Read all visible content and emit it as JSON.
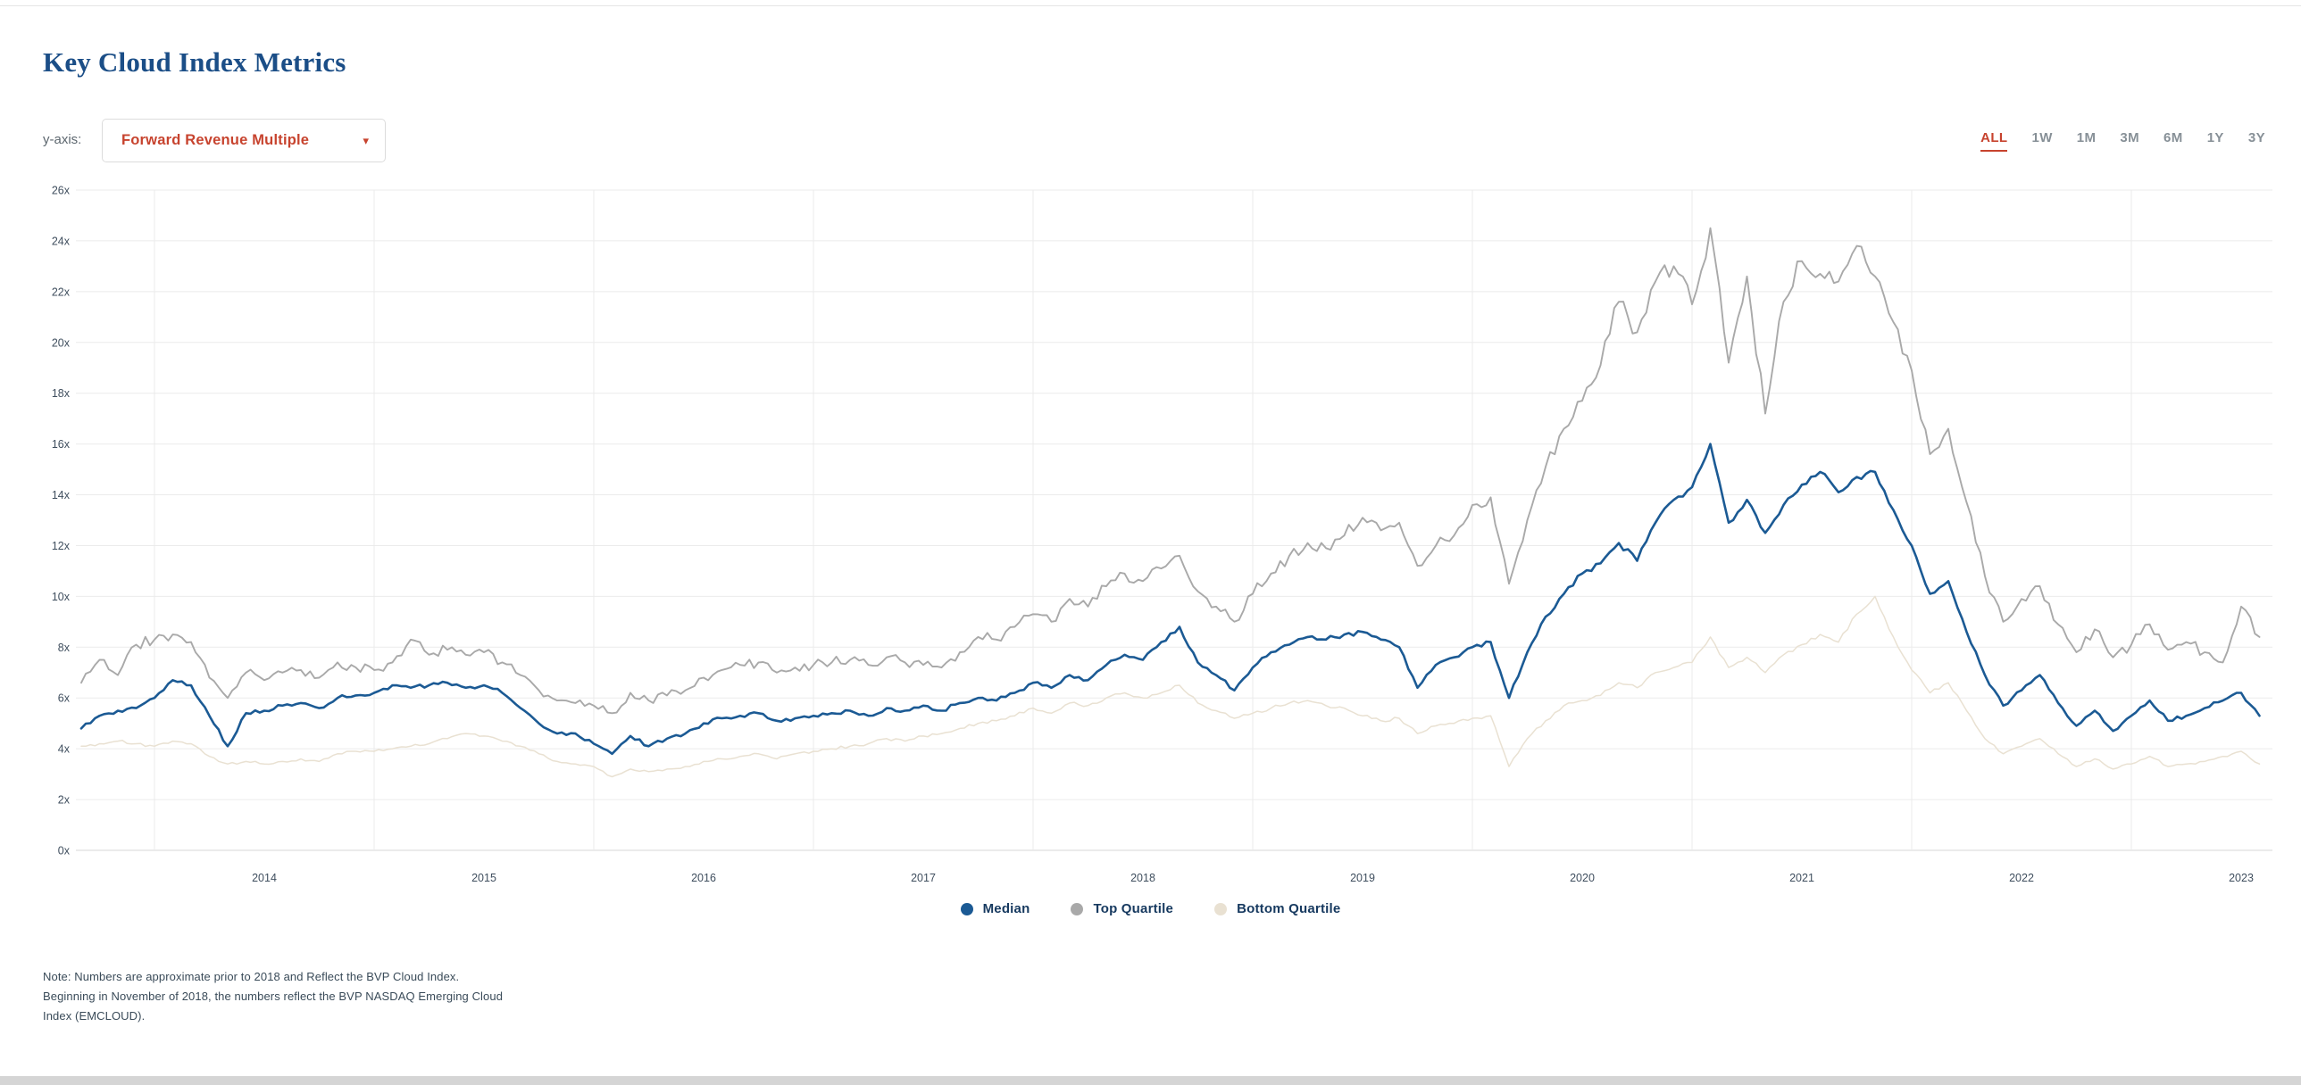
{
  "header": {
    "title": "Key Cloud Index Metrics"
  },
  "controls": {
    "y_axis_label": "y-axis:",
    "metric_dropdown": {
      "value": "Forward Revenue Multiple",
      "caret_glyph": "▾",
      "icon": "chevron-down-icon"
    },
    "time_ranges": [
      "ALL",
      "1W",
      "1M",
      "3M",
      "6M",
      "1Y",
      "3Y"
    ],
    "active_time_range": "ALL"
  },
  "chart_data": {
    "type": "line",
    "title": "Key Cloud Index Metrics",
    "xlabel": "",
    "ylabel": "Forward Revenue Multiple",
    "x_start": "2013-09",
    "x_end": "2023-08",
    "frequency": "monthly",
    "x_tick_labels": [
      "2014",
      "2015",
      "2016",
      "2017",
      "2018",
      "2019",
      "2020",
      "2021",
      "2022",
      "2023"
    ],
    "y_ticks": [
      "0x",
      "2x",
      "4x",
      "6x",
      "8x",
      "10x",
      "12x",
      "14x",
      "16x",
      "18x",
      "20x",
      "22x",
      "24x",
      "26x"
    ],
    "ylim": [
      0,
      26
    ],
    "y_unit_suffix": "x",
    "grid": true,
    "legend_position": "bottom",
    "series": [
      {
        "name": "Median",
        "color": "#1b5a94",
        "values": [
          4.8,
          5.3,
          5.5,
          5.6,
          6.0,
          6.7,
          6.5,
          5.3,
          4.1,
          5.4,
          5.5,
          5.7,
          5.8,
          5.6,
          6.0,
          6.1,
          6.2,
          6.5,
          6.4,
          6.5,
          6.6,
          6.4,
          6.5,
          6.2,
          5.6,
          5.0,
          4.6,
          4.6,
          4.2,
          3.8,
          4.5,
          4.1,
          4.4,
          4.6,
          5.0,
          5.2,
          5.3,
          5.4,
          5.1,
          5.2,
          5.3,
          5.4,
          5.5,
          5.3,
          5.6,
          5.5,
          5.7,
          5.5,
          5.8,
          6.0,
          5.9,
          6.2,
          6.6,
          6.4,
          6.9,
          6.7,
          7.3,
          7.7,
          7.5,
          8.2,
          8.8,
          7.4,
          6.9,
          6.3,
          7.2,
          7.8,
          8.1,
          8.4,
          8.3,
          8.5,
          8.6,
          8.3,
          8.0,
          6.4,
          7.3,
          7.6,
          8.0,
          8.2,
          6.0,
          7.8,
          9.2,
          10.1,
          10.9,
          11.3,
          12.1,
          11.4,
          12.9,
          13.8,
          14.3,
          16.0,
          12.9,
          13.8,
          12.5,
          13.6,
          14.4,
          14.9,
          14.1,
          14.7,
          14.9,
          13.4,
          12.0,
          10.1,
          10.6,
          8.6,
          6.9,
          5.7,
          6.3,
          6.9,
          5.8,
          4.9,
          5.5,
          4.7,
          5.3,
          5.9,
          5.1,
          5.3,
          5.6,
          5.9,
          6.2,
          5.3
        ]
      },
      {
        "name": "Top Quartile",
        "color": "#a9a9a9",
        "values": [
          6.6,
          7.5,
          6.9,
          8.1,
          8.3,
          8.5,
          8.2,
          6.8,
          6.0,
          7.0,
          6.7,
          7.0,
          7.1,
          6.8,
          7.4,
          7.2,
          7.1,
          7.4,
          8.3,
          7.7,
          7.9,
          7.7,
          7.8,
          7.4,
          6.9,
          6.3,
          5.9,
          5.8,
          5.7,
          5.4,
          6.2,
          5.9,
          6.1,
          6.3,
          6.8,
          7.1,
          7.3,
          7.4,
          7.0,
          7.2,
          7.3,
          7.4,
          7.5,
          7.3,
          7.6,
          7.4,
          7.3,
          7.2,
          7.8,
          8.4,
          8.3,
          8.8,
          9.3,
          9.0,
          9.9,
          9.6,
          10.4,
          10.9,
          10.6,
          11.1,
          11.6,
          10.2,
          9.6,
          9.0,
          10.1,
          10.9,
          11.6,
          12.1,
          11.9,
          12.4,
          13.1,
          12.6,
          12.9,
          11.2,
          12.0,
          12.4,
          13.6,
          13.9,
          10.5,
          13.0,
          15.1,
          16.6,
          17.7,
          19.1,
          21.6,
          20.4,
          22.4,
          23.0,
          21.5,
          24.5,
          19.2,
          22.6,
          17.2,
          21.6,
          23.2,
          22.7,
          22.4,
          23.8,
          22.6,
          20.8,
          18.9,
          15.6,
          16.6,
          13.7,
          10.8,
          9.0,
          9.9,
          10.4,
          8.9,
          7.8,
          8.7,
          7.6,
          8.1,
          8.9,
          7.9,
          8.2,
          7.8,
          7.4,
          9.6,
          8.4
        ]
      },
      {
        "name": "Bottom Quartile",
        "color": "#e9e1d2",
        "values": [
          4.1,
          4.2,
          4.3,
          4.2,
          4.1,
          4.3,
          4.2,
          3.7,
          3.4,
          3.5,
          3.4,
          3.5,
          3.6,
          3.5,
          3.8,
          3.9,
          3.9,
          4.0,
          4.1,
          4.2,
          4.4,
          4.6,
          4.5,
          4.3,
          4.1,
          3.8,
          3.5,
          3.4,
          3.3,
          2.9,
          3.2,
          3.1,
          3.2,
          3.3,
          3.5,
          3.6,
          3.7,
          3.8,
          3.6,
          3.8,
          3.9,
          4.0,
          4.1,
          4.2,
          4.4,
          4.3,
          4.5,
          4.6,
          4.8,
          5.0,
          5.1,
          5.3,
          5.6,
          5.4,
          5.8,
          5.7,
          6.0,
          6.2,
          6.0,
          6.2,
          6.5,
          5.8,
          5.5,
          5.2,
          5.4,
          5.6,
          5.8,
          5.9,
          5.7,
          5.6,
          5.3,
          5.1,
          5.2,
          4.6,
          4.9,
          5.0,
          5.2,
          5.3,
          3.3,
          4.4,
          5.1,
          5.7,
          5.9,
          6.1,
          6.6,
          6.4,
          7.0,
          7.2,
          7.4,
          8.4,
          7.2,
          7.6,
          7.0,
          7.7,
          8.1,
          8.5,
          8.2,
          9.3,
          10.0,
          8.4,
          7.1,
          6.2,
          6.6,
          5.5,
          4.4,
          3.8,
          4.1,
          4.4,
          3.8,
          3.3,
          3.6,
          3.2,
          3.4,
          3.7,
          3.3,
          3.4,
          3.5,
          3.7,
          3.9,
          3.4
        ]
      }
    ]
  },
  "note": {
    "lines": [
      "Note: Numbers are approximate prior to 2018 and Reflect the BVP Cloud Index.",
      "Beginning in November of 2018, the numbers reflect the BVP NASDAQ Emerging Cloud",
      "Index (EMCLOUD)."
    ]
  },
  "colors": {
    "title": "#1b4e87",
    "accent_red": "#c7432e",
    "tab_gray": "#879097",
    "gridline": "#ebebeb",
    "axis_line": "#d7d7d7",
    "tick_text": "#3f4e5e",
    "legend_text": "#16395f"
  }
}
